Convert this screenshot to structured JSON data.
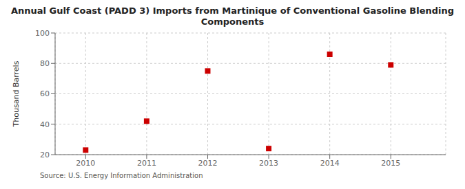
{
  "chart_data": {
    "type": "scatter",
    "title": "Annual Gulf Coast (PADD 3) Imports from Martinique of Conventional Gasoline Blending\nComponents",
    "ylabel": "Thousand Barrels",
    "annotations": [
      "Source: U.S. Energy Information Administration"
    ],
    "x": [
      2010,
      2011,
      2012,
      2013,
      2014,
      2015
    ],
    "values": [
      23,
      42,
      75,
      24,
      86,
      79
    ],
    "color": "#cc0000",
    "marker": "square",
    "xlim": [
      2009.5,
      2015.9
    ],
    "xticks": [
      2010,
      2011,
      2012,
      2013,
      2014,
      2015
    ],
    "ylim": [
      20,
      100
    ],
    "yticks": [
      20,
      40,
      60,
      80,
      100
    ],
    "grid": true
  }
}
